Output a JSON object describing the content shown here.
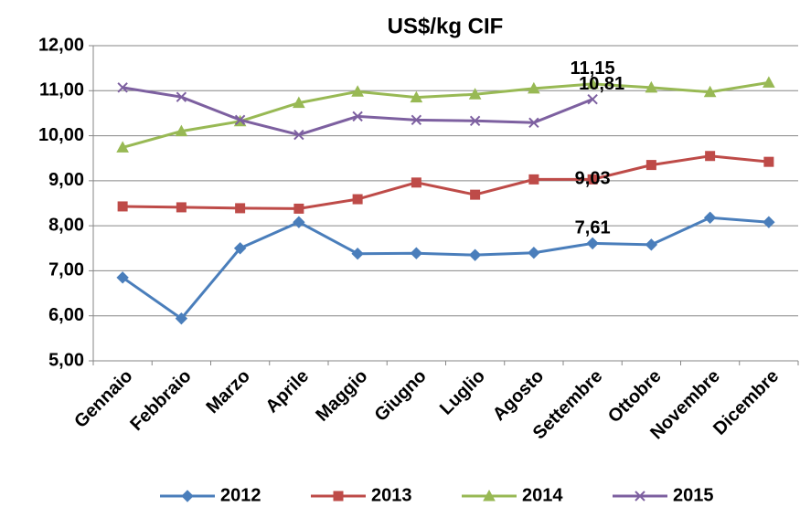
{
  "chart_data": {
    "type": "line",
    "title": "US$/kg CIF",
    "categories": [
      "Gennaio",
      "Febbraio",
      "Marzo",
      "Aprile",
      "Maggio",
      "Giugno",
      "Luglio",
      "Agosto",
      "Settembre",
      "Ottobre",
      "Novembre",
      "Dicembre"
    ],
    "series": [
      {
        "name": "2012",
        "color": "#4a7ebb",
        "marker": "diamond",
        "values": [
          6.85,
          5.94,
          7.5,
          8.08,
          7.38,
          7.39,
          7.35,
          7.4,
          7.61,
          7.58,
          8.18,
          8.08
        ],
        "value_labels": [
          null,
          null,
          null,
          null,
          null,
          null,
          null,
          null,
          "7,61",
          null,
          null,
          null
        ]
      },
      {
        "name": "2013",
        "color": "#be4b48",
        "marker": "square",
        "values": [
          8.43,
          8.41,
          8.39,
          8.38,
          8.59,
          8.96,
          8.69,
          9.03,
          9.03,
          9.35,
          9.55,
          9.42
        ],
        "value_labels": [
          null,
          null,
          null,
          null,
          null,
          null,
          null,
          null,
          "9,03",
          null,
          null,
          null
        ]
      },
      {
        "name": "2014",
        "color": "#98b954",
        "marker": "triangle",
        "values": [
          9.74,
          10.1,
          10.32,
          10.73,
          10.98,
          10.85,
          10.92,
          11.05,
          11.15,
          11.07,
          10.97,
          11.18
        ],
        "value_labels": [
          null,
          null,
          null,
          null,
          null,
          null,
          null,
          null,
          "11,15",
          null,
          null,
          null
        ]
      },
      {
        "name": "2015",
        "color": "#7d60a0",
        "marker": "x",
        "values": [
          11.07,
          10.86,
          10.35,
          10.02,
          10.43,
          10.35,
          10.33,
          10.29,
          10.81,
          null,
          null,
          null
        ],
        "value_labels": [
          null,
          null,
          null,
          null,
          null,
          null,
          null,
          null,
          "10,81",
          null,
          null,
          null
        ]
      }
    ],
    "ylim": [
      5,
      12
    ],
    "yticks": [
      {
        "value": 5,
        "label": "5,00"
      },
      {
        "value": 6,
        "label": "6,00"
      },
      {
        "value": 7,
        "label": "7,00"
      },
      {
        "value": 8,
        "label": "8,00"
      },
      {
        "value": 9,
        "label": "9,00"
      },
      {
        "value": 10,
        "label": "10,00"
      },
      {
        "value": 11,
        "label": "11,00"
      },
      {
        "value": 12,
        "label": "12,00"
      }
    ],
    "grid": true,
    "legend": "bottom"
  }
}
